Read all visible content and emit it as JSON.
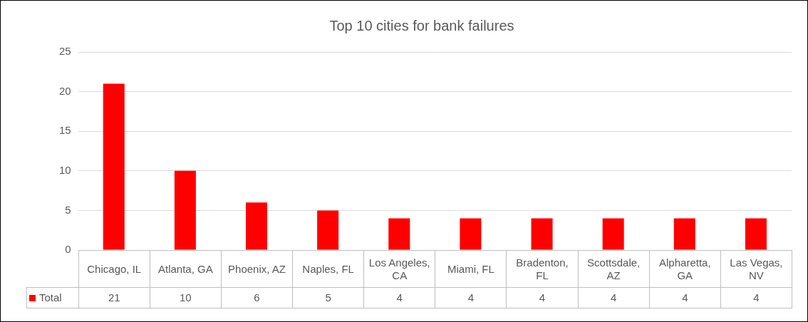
{
  "chart_data": {
    "type": "bar",
    "title": "Top 10 cities for bank failures",
    "categories": [
      "Chicago, IL",
      "Atlanta, GA",
      "Phoenix, AZ",
      "Naples, FL",
      "Los Angeles, CA",
      "Miami, FL",
      "Bradenton, FL",
      "Scottsdale, AZ",
      "Alpharetta, GA",
      "Las Vegas, NV"
    ],
    "series": [
      {
        "name": "Total",
        "color": "#ff0000",
        "values": [
          21,
          10,
          6,
          5,
          4,
          4,
          4,
          4,
          4,
          4
        ]
      }
    ],
    "ylim": [
      0,
      25
    ],
    "yticks": [
      0,
      5,
      10,
      15,
      20,
      25
    ],
    "grid": true
  }
}
